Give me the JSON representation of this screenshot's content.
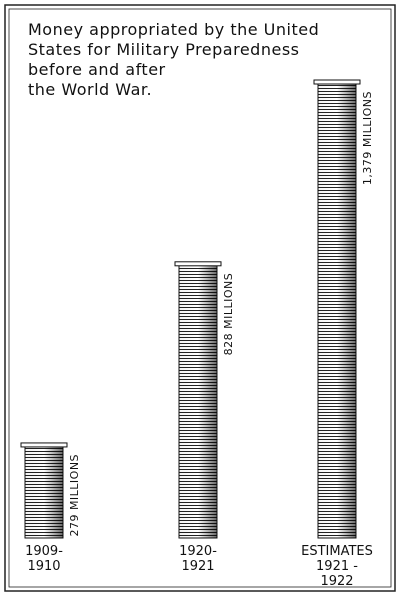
{
  "chart_data": {
    "type": "bar",
    "title": "Money appropriated by the United\nStates for Military Preparedness\nbefore and after\nthe World War.",
    "categories": [
      "1909-\n1910",
      "1920-\n1921",
      "ESTIMATES\n1921 - 1922"
    ],
    "values": [
      279,
      828,
      1379
    ],
    "value_labels": [
      "279 MILLIONS",
      "828 MILLIONS",
      "1,379 MILLIONS"
    ],
    "color": "#111111"
  }
}
